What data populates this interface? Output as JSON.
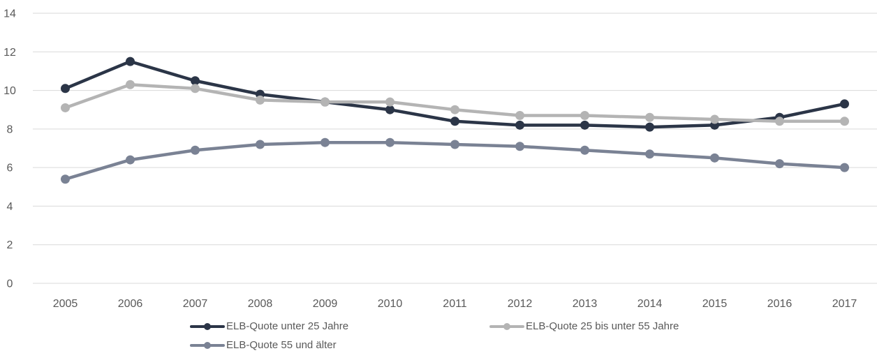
{
  "chart_data": {
    "type": "line",
    "title": "",
    "xlabel": "",
    "ylabel": "",
    "categories": [
      "2005",
      "2006",
      "2007",
      "2008",
      "2009",
      "2010",
      "2011",
      "2012",
      "2013",
      "2014",
      "2015",
      "2016",
      "2017"
    ],
    "ylim": [
      0,
      14
    ],
    "yticks": [
      0,
      2,
      4,
      6,
      8,
      10,
      12,
      14
    ],
    "grid": "horizontal",
    "legend_position": "bottom",
    "series": [
      {
        "name": "ELB-Quote unter 25 Jahre",
        "color": "#2b3547",
        "values": [
          10.1,
          11.5,
          10.5,
          9.8,
          9.4,
          9.0,
          8.4,
          8.2,
          8.2,
          8.1,
          8.2,
          8.6,
          9.3
        ]
      },
      {
        "name": "ELB-Quote 25 bis unter 55 Jahre",
        "color": "#b4b4b4",
        "values": [
          9.1,
          10.3,
          10.1,
          9.5,
          9.4,
          9.4,
          9.0,
          8.7,
          8.7,
          8.6,
          8.5,
          8.4,
          8.4
        ]
      },
      {
        "name": "ELB-Quote 55 und älter",
        "color": "#7a8294",
        "values": [
          5.4,
          6.4,
          6.9,
          7.2,
          7.3,
          7.3,
          7.2,
          7.1,
          6.9,
          6.7,
          6.5,
          6.2,
          6.0
        ]
      }
    ]
  }
}
